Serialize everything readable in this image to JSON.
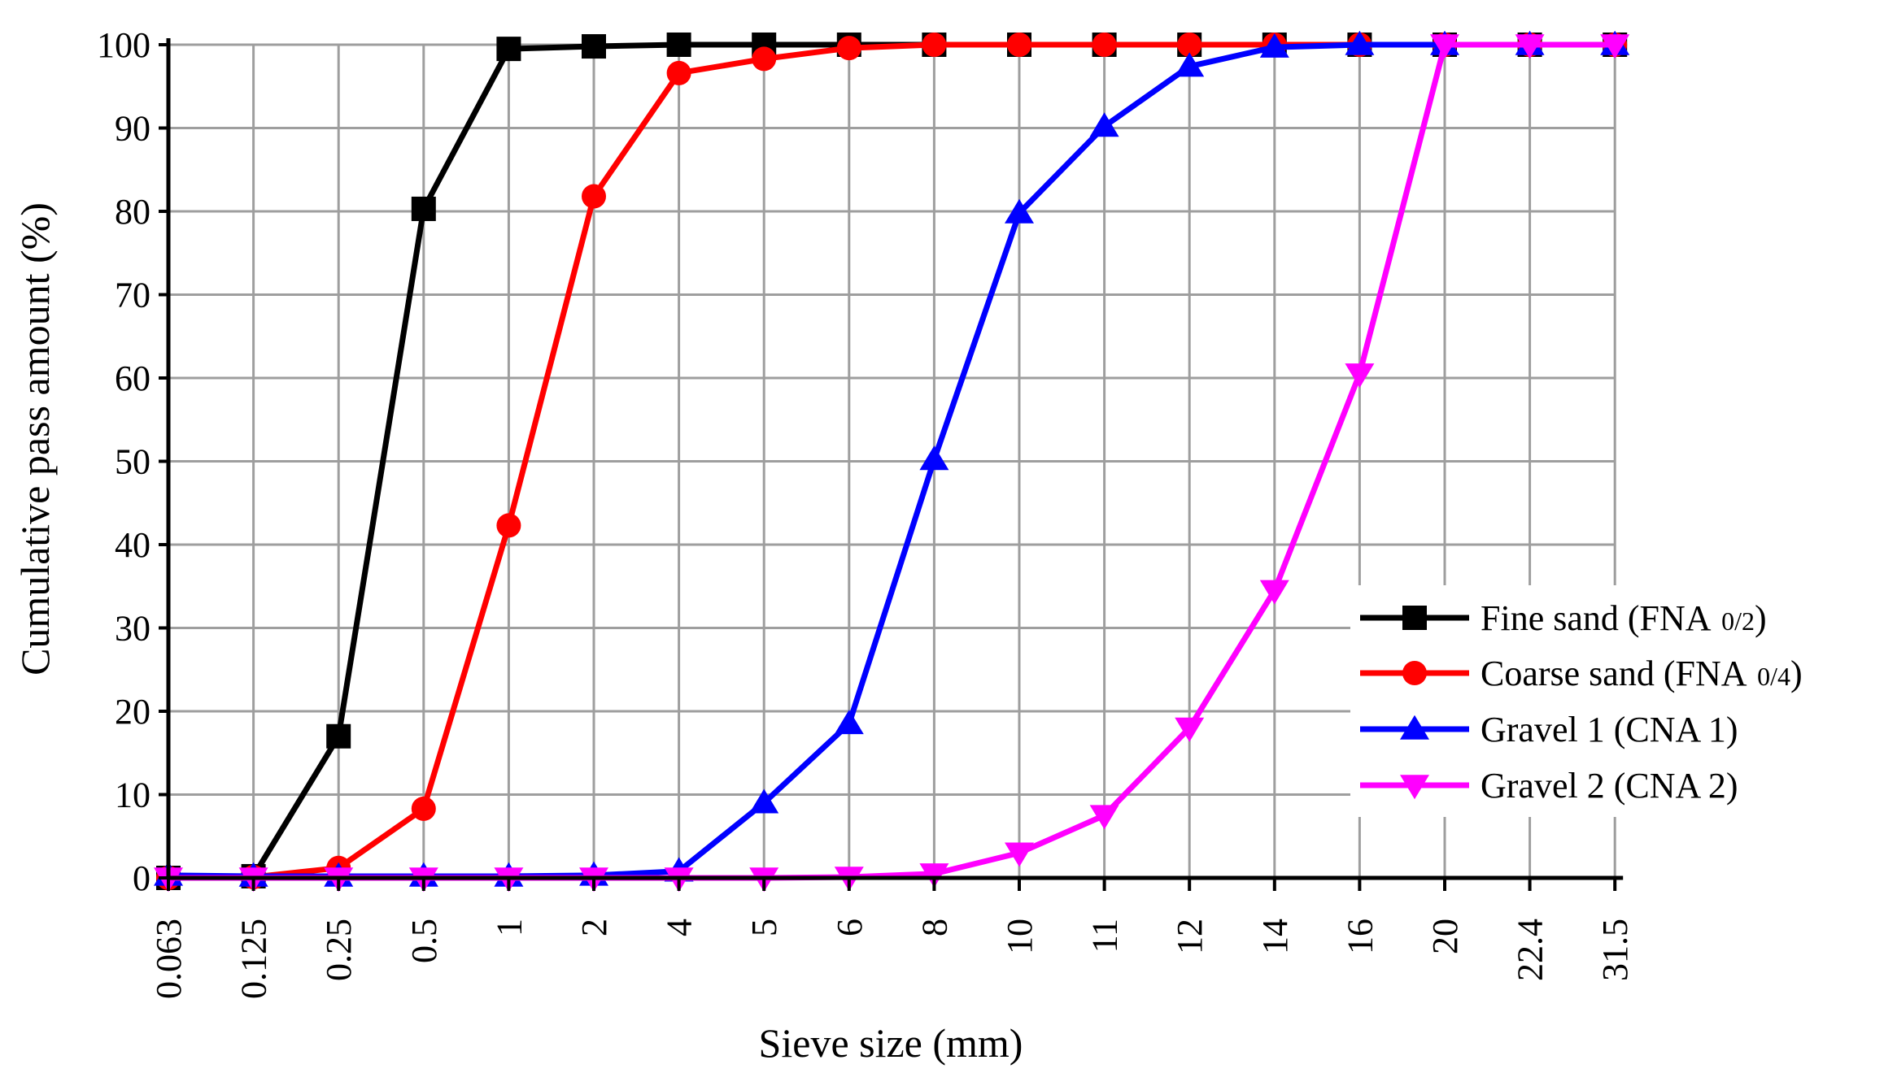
{
  "chart_data": {
    "type": "line",
    "title": "",
    "xlabel": "Sieve size (mm)",
    "ylabel": "Cumulative pass amount (%)",
    "ylim": [
      0,
      100
    ],
    "yticks": [
      "0",
      "10",
      "20",
      "30",
      "40",
      "50",
      "60",
      "70",
      "80",
      "90",
      "100"
    ],
    "categories": [
      "0.063",
      "0.125",
      "0.25",
      "0.5",
      "1",
      "2",
      "4",
      "5",
      "6",
      "8",
      "10",
      "11",
      "12",
      "14",
      "16",
      "20",
      "22.4",
      "31.5"
    ],
    "x_scale": "categorical (equal spacing per sieve size)",
    "grid": true,
    "legend_position": "right",
    "series": [
      {
        "name": "Fine sand (FNA 0/2)",
        "color": "#000000",
        "marker": "square",
        "values": [
          0,
          0.2,
          17,
          80.3,
          99.5,
          99.8,
          100,
          100,
          100,
          100,
          100,
          100,
          100,
          100,
          100,
          100,
          100,
          100
        ]
      },
      {
        "name": "Coarse sand (FNA 0/4)",
        "color": "#ff0000",
        "marker": "circle",
        "values": [
          0,
          0.1,
          1.2,
          8.3,
          42.3,
          81.8,
          96.6,
          98.3,
          99.6,
          100,
          100,
          100,
          100,
          100,
          100,
          100,
          100,
          100
        ]
      },
      {
        "name": "Gravel 1 (CNA 1)",
        "color": "#0000ff",
        "marker": "triangle-up",
        "values": [
          0.3,
          0.2,
          0.2,
          0.2,
          0.2,
          0.3,
          0.8,
          9,
          18.5,
          50.2,
          79.8,
          90.2,
          97.4,
          99.7,
          100,
          100,
          100,
          100
        ]
      },
      {
        "name": "Gravel 2 (CNA 2)",
        "color": "#ff00ff",
        "marker": "triangle-down",
        "values": [
          0,
          0,
          0,
          0,
          0,
          0,
          0,
          0,
          0.1,
          0.5,
          3,
          7.5,
          18,
          34.5,
          60.5,
          100,
          100,
          100
        ]
      }
    ],
    "legend": [
      {
        "main": "Fine sand (FNA ",
        "sub": "0/2",
        "end": ")"
      },
      {
        "main": "Coarse sand (FNA ",
        "sub": "0/4",
        "end": ")"
      },
      {
        "main": "Gravel 1 (CNA 1)",
        "sub": "",
        "end": ""
      },
      {
        "main": "Gravel 2 (CNA 2)",
        "sub": "",
        "end": ""
      }
    ]
  }
}
